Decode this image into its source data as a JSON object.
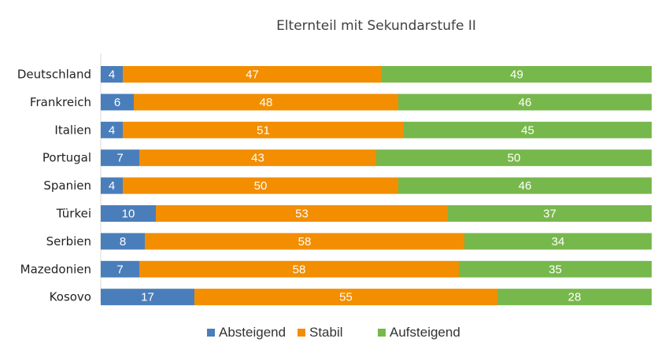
{
  "chart_data": {
    "type": "bar",
    "orientation": "horizontal",
    "stacked": true,
    "title": "Elternteil mit Sekundarstufe II",
    "xlabel": "",
    "ylabel": "",
    "xlim": [
      0,
      100
    ],
    "grid": false,
    "legend_position": "bottom",
    "categories": [
      "Deutschland",
      "Frankreich",
      "Italien",
      "Portugal",
      "Spanien",
      "Türkei",
      "Serbien",
      "Mazedonien",
      "Kosovo"
    ],
    "series": [
      {
        "name": "Absteigend",
        "color": "#4A7EBB",
        "values": [
          4,
          6,
          4,
          7,
          4,
          10,
          8,
          7,
          17
        ]
      },
      {
        "name": "Stabil",
        "color": "#F28E00",
        "values": [
          47,
          48,
          51,
          43,
          50,
          53,
          58,
          58,
          55
        ]
      },
      {
        "name": "Aufsteigend",
        "color": "#77B84C",
        "values": [
          49,
          46,
          45,
          50,
          46,
          37,
          34,
          35,
          28
        ]
      }
    ]
  }
}
